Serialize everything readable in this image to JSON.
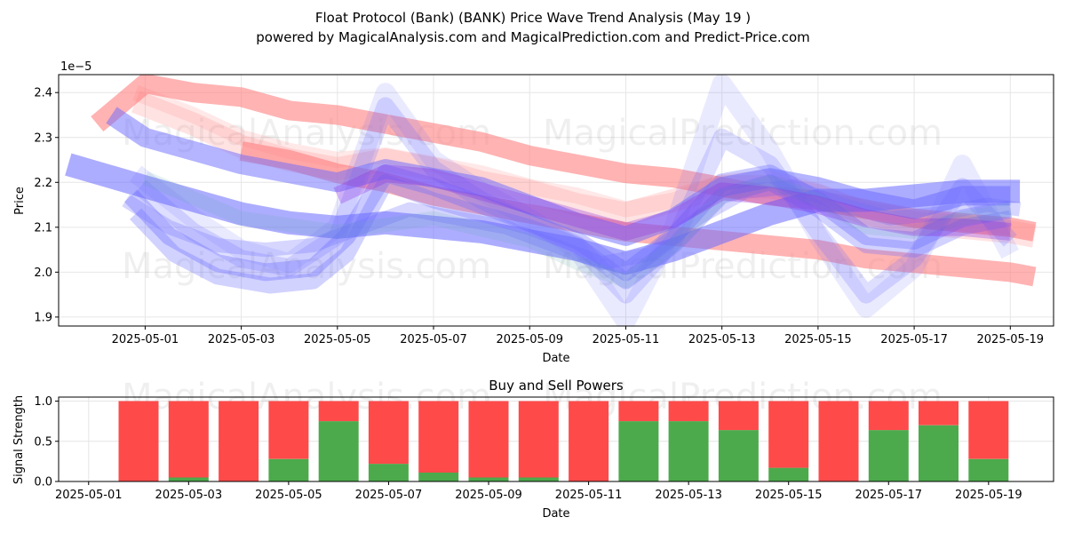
{
  "title_line1": "Float Protocol (Bank) (BANK) Price Wave Trend Analysis (May 19 )",
  "title_line2": "powered by MagicalAnalysis.com and MagicalPrediction.com and Predict-Price.com",
  "watermarks": [
    "MagicalAnalysis.com",
    "MagicalPrediction.com"
  ],
  "colors": {
    "red_band": "#ff8080",
    "blue_band": "#6a6aff",
    "buy": "#4caa4c",
    "sell": "#ff4a4a",
    "grid": "#e6e6e6"
  },
  "chart_data": [
    {
      "type": "line",
      "title": "",
      "xlabel": "Date",
      "ylabel": "Price",
      "y_offset_label": "1e−5",
      "grid": true,
      "x_start": "2025-04-30",
      "xlim_days": [
        -0.8,
        19.9
      ],
      "ylim": [
        1.88,
        2.44
      ],
      "x_ticks": [
        {
          "day": 1,
          "label": "2025-05-01"
        },
        {
          "day": 3,
          "label": "2025-05-03"
        },
        {
          "day": 5,
          "label": "2025-05-05"
        },
        {
          "day": 7,
          "label": "2025-05-07"
        },
        {
          "day": 9,
          "label": "2025-05-09"
        },
        {
          "day": 11,
          "label": "2025-05-11"
        },
        {
          "day": 13,
          "label": "2025-05-13"
        },
        {
          "day": 15,
          "label": "2025-05-15"
        },
        {
          "day": 17,
          "label": "2025-05-17"
        },
        {
          "day": 19,
          "label": "2025-05-19"
        }
      ],
      "y_ticks": [
        {
          "value": 1.9,
          "label": "1.9"
        },
        {
          "value": 2.0,
          "label": "2.0"
        },
        {
          "value": 2.1,
          "label": "2.1"
        },
        {
          "value": 2.2,
          "label": "2.2"
        },
        {
          "value": 2.3,
          "label": "2.3"
        },
        {
          "value": 2.4,
          "label": "2.4"
        }
      ],
      "series": [
        {
          "name": "red-trend-upper",
          "color": "red",
          "width": 22,
          "opacity": 0.6,
          "x": [
            0.0,
            1,
            2,
            3,
            4,
            5,
            6,
            7,
            8,
            9,
            10,
            11,
            12,
            13,
            14,
            15,
            16,
            17,
            18,
            19,
            19.5
          ],
          "y": [
            2.33,
            2.42,
            2.4,
            2.39,
            2.36,
            2.35,
            2.33,
            2.31,
            2.29,
            2.26,
            2.24,
            2.22,
            2.21,
            2.19,
            2.17,
            2.16,
            2.14,
            2.12,
            2.11,
            2.1,
            2.09
          ]
        },
        {
          "name": "red-trend-lower",
          "color": "red",
          "width": 22,
          "opacity": 0.6,
          "x": [
            3.0,
            4,
            5,
            6,
            7,
            8,
            9,
            10,
            11,
            12,
            13,
            14,
            15,
            16,
            17,
            18,
            19,
            19.5
          ],
          "y": [
            2.27,
            2.25,
            2.22,
            2.2,
            2.17,
            2.15,
            2.13,
            2.11,
            2.09,
            2.08,
            2.07,
            2.06,
            2.05,
            2.03,
            2.02,
            2.01,
            2.0,
            1.99
          ]
        },
        {
          "name": "red-wave-1",
          "color": "red",
          "width": 26,
          "opacity": 0.22,
          "x": [
            0.8,
            2,
            3,
            4,
            5,
            6,
            7,
            8,
            9,
            10,
            11,
            12,
            13,
            14,
            15,
            16,
            17,
            18,
            19,
            19.5
          ],
          "y": [
            2.38,
            2.33,
            2.28,
            2.25,
            2.23,
            2.25,
            2.23,
            2.2,
            2.18,
            2.15,
            2.13,
            2.16,
            2.19,
            2.19,
            2.17,
            2.13,
            2.11,
            2.1,
            2.09,
            2.08
          ]
        },
        {
          "name": "red-wave-2",
          "color": "red",
          "width": 18,
          "opacity": 0.18,
          "x": [
            0.8,
            2,
            3,
            4,
            5,
            6,
            7,
            8,
            9,
            10,
            11,
            12,
            13,
            14,
            15,
            16,
            17,
            18,
            19
          ],
          "y": [
            2.4,
            2.35,
            2.3,
            2.27,
            2.25,
            2.26,
            2.24,
            2.22,
            2.19,
            2.17,
            2.14,
            2.16,
            2.2,
            2.21,
            2.18,
            2.14,
            2.12,
            2.11,
            2.1
          ]
        },
        {
          "name": "blue-wave-a",
          "color": "blue",
          "width": 26,
          "opacity": 0.55,
          "x": [
            -0.6,
            1,
            2,
            3,
            4,
            5,
            6,
            7,
            8,
            9,
            10,
            11,
            12,
            13,
            14,
            15,
            16,
            17,
            18,
            19.2
          ],
          "y": [
            2.24,
            2.19,
            2.16,
            2.13,
            2.11,
            2.1,
            2.11,
            2.1,
            2.09,
            2.07,
            2.05,
            2.02,
            2.05,
            2.09,
            2.13,
            2.16,
            2.16,
            2.17,
            2.18,
            2.18
          ]
        },
        {
          "name": "blue-wave-b",
          "color": "blue",
          "width": 22,
          "opacity": 0.5,
          "x": [
            0.3,
            1,
            2,
            3,
            4,
            5,
            6,
            7,
            8,
            9,
            10,
            11,
            12,
            13,
            14,
            15,
            16,
            17,
            18,
            19
          ],
          "y": [
            2.35,
            2.3,
            2.27,
            2.24,
            2.22,
            2.2,
            2.23,
            2.21,
            2.19,
            2.15,
            2.11,
            2.08,
            2.12,
            2.19,
            2.21,
            2.19,
            2.16,
            2.14,
            2.17,
            2.17
          ]
        },
        {
          "name": "blue-wave-c",
          "color": "blue",
          "width": 20,
          "opacity": 0.35,
          "x": [
            0.7,
            1.5,
            2.5,
            3.5,
            4.5,
            5.2,
            6,
            7,
            8,
            9,
            10,
            11,
            12,
            13,
            14,
            15,
            16,
            17,
            18,
            19
          ],
          "y": [
            2.17,
            2.08,
            2.02,
            2.0,
            2.01,
            2.08,
            2.22,
            2.19,
            2.15,
            2.11,
            2.07,
            2.0,
            2.08,
            2.2,
            2.22,
            2.16,
            2.08,
            2.07,
            2.12,
            2.14
          ]
        },
        {
          "name": "blue-wave-d",
          "color": "blue",
          "width": 18,
          "opacity": 0.3,
          "x": [
            0.8,
            1.6,
            2.5,
            3.6,
            4.5,
            5.2,
            6,
            7,
            8,
            9,
            10,
            11,
            12,
            13,
            14,
            15,
            16,
            17,
            18,
            19
          ],
          "y": [
            2.13,
            2.04,
            1.99,
            1.97,
            1.98,
            2.04,
            2.2,
            2.16,
            2.13,
            2.1,
            2.06,
            1.98,
            2.06,
            2.17,
            2.2,
            2.14,
            2.06,
            2.05,
            2.1,
            2.12
          ]
        },
        {
          "name": "blue-wave-e",
          "color": "blue",
          "width": 20,
          "opacity": 0.22,
          "x": [
            0.9,
            2,
            3,
            4,
            5,
            6,
            7,
            8,
            9,
            10,
            11,
            12,
            13,
            14,
            15,
            16,
            17,
            18,
            19
          ],
          "y": [
            2.19,
            2.09,
            2.03,
            2.01,
            2.08,
            2.37,
            2.23,
            2.16,
            2.11,
            2.06,
            1.95,
            2.07,
            2.3,
            2.24,
            2.09,
            1.95,
            2.03,
            2.19,
            2.07
          ]
        },
        {
          "name": "blue-wave-f",
          "color": "blue",
          "width": 22,
          "opacity": 0.14,
          "x": [
            0.8,
            2,
            3,
            4,
            5,
            6,
            7,
            8,
            9,
            10,
            11,
            12,
            13,
            14,
            15,
            16,
            17,
            18,
            19
          ],
          "y": [
            2.22,
            2.12,
            2.05,
            2.02,
            2.1,
            2.4,
            2.25,
            2.18,
            2.12,
            2.05,
            1.89,
            2.1,
            2.42,
            2.27,
            2.08,
            1.92,
            2.01,
            2.24,
            2.04
          ]
        },
        {
          "name": "blue-wave-g",
          "color": "blue",
          "width": 16,
          "opacity": 0.28,
          "x": [
            0.6,
            1.5,
            2.5,
            3.5,
            4.5,
            5.5,
            6.5,
            7.5,
            8.5,
            9.5,
            10.5,
            11.5,
            12.5,
            13.5,
            14.5,
            15.5,
            16.5,
            17.5,
            18.5,
            19.2
          ],
          "y": [
            2.16,
            2.1,
            2.06,
            2.05,
            2.06,
            2.1,
            2.14,
            2.12,
            2.1,
            2.06,
            2.02,
            2.04,
            2.12,
            2.18,
            2.19,
            2.15,
            2.12,
            2.13,
            2.15,
            2.14
          ]
        },
        {
          "name": "teal-wave",
          "color": "teal",
          "width": 16,
          "opacity": 0.15,
          "x": [
            1,
            3,
            5,
            7,
            9,
            10,
            11,
            12,
            13,
            14,
            15,
            16,
            17,
            18,
            19
          ],
          "y": [
            2.21,
            2.12,
            2.09,
            2.12,
            2.07,
            2.02,
            1.98,
            2.06,
            2.17,
            2.2,
            2.16,
            2.1,
            2.09,
            2.12,
            2.14
          ]
        },
        {
          "name": "purple-wave",
          "color": "purple",
          "width": 20,
          "opacity": 0.3,
          "x": [
            5,
            6,
            7,
            8,
            9,
            10,
            11,
            12,
            13,
            14,
            15,
            16,
            17,
            18,
            19
          ],
          "y": [
            2.17,
            2.22,
            2.21,
            2.18,
            2.15,
            2.12,
            2.09,
            2.12,
            2.18,
            2.17,
            2.15,
            2.12,
            2.1,
            2.1,
            2.09
          ]
        }
      ]
    },
    {
      "type": "bar",
      "title": "Buy and Sell Powers",
      "xlabel": "Date",
      "ylabel": "Signal Strength",
      "grid": true,
      "x_start": "2025-04-30",
      "xlim_days": [
        0.4,
        20.3
      ],
      "ylim": [
        0,
        1.05
      ],
      "x_ticks": [
        {
          "day": 1,
          "label": "2025-05-01"
        },
        {
          "day": 3,
          "label": "2025-05-03"
        },
        {
          "day": 5,
          "label": "2025-05-05"
        },
        {
          "day": 7,
          "label": "2025-05-07"
        },
        {
          "day": 9,
          "label": "2025-05-09"
        },
        {
          "day": 11,
          "label": "2025-05-11"
        },
        {
          "day": 13,
          "label": "2025-05-13"
        },
        {
          "day": 15,
          "label": "2025-05-15"
        },
        {
          "day": 17,
          "label": "2025-05-17"
        },
        {
          "day": 19,
          "label": "2025-05-19"
        }
      ],
      "y_ticks": [
        {
          "value": 0.0,
          "label": "0.0"
        },
        {
          "value": 0.5,
          "label": "0.5"
        },
        {
          "value": 1.0,
          "label": "1.0"
        }
      ],
      "categories": [
        "2025-05-02",
        "2025-05-03",
        "2025-05-04",
        "2025-05-05",
        "2025-05-06",
        "2025-05-07",
        "2025-05-08",
        "2025-05-09",
        "2025-05-10",
        "2025-05-11",
        "2025-05-12",
        "2025-05-13",
        "2025-05-14",
        "2025-05-15",
        "2025-05-16",
        "2025-05-17",
        "2025-05-18",
        "2025-05-19"
      ],
      "days": [
        2,
        3,
        4,
        5,
        6,
        7,
        8,
        9,
        10,
        11,
        12,
        13,
        14,
        15,
        16,
        17,
        18,
        19
      ],
      "series": [
        {
          "name": "Buy",
          "color": "buy",
          "values": [
            0.0,
            0.05,
            0.0,
            0.28,
            0.75,
            0.22,
            0.11,
            0.05,
            0.05,
            0.0,
            0.75,
            0.75,
            0.64,
            0.17,
            0.0,
            0.64,
            0.7,
            0.28
          ]
        },
        {
          "name": "Sell",
          "color": "sell",
          "values": [
            1.0,
            0.95,
            1.0,
            0.72,
            0.25,
            0.78,
            0.89,
            0.95,
            0.95,
            1.0,
            0.25,
            0.25,
            0.36,
            0.83,
            1.0,
            0.36,
            0.3,
            0.72
          ]
        }
      ]
    }
  ]
}
